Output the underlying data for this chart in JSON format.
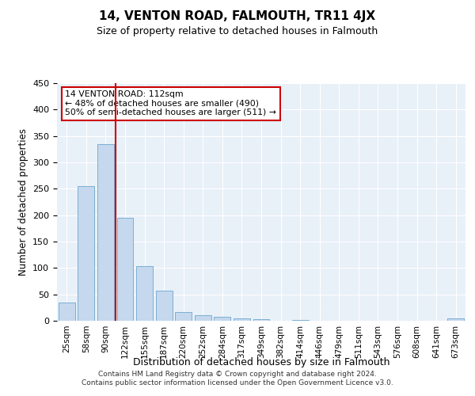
{
  "title": "14, VENTON ROAD, FALMOUTH, TR11 4JX",
  "subtitle": "Size of property relative to detached houses in Falmouth",
  "xlabel": "Distribution of detached houses by size in Falmouth",
  "ylabel": "Number of detached properties",
  "categories": [
    "25sqm",
    "58sqm",
    "90sqm",
    "122sqm",
    "155sqm",
    "187sqm",
    "220sqm",
    "252sqm",
    "284sqm",
    "317sqm",
    "349sqm",
    "382sqm",
    "414sqm",
    "446sqm",
    "479sqm",
    "511sqm",
    "543sqm",
    "576sqm",
    "608sqm",
    "641sqm",
    "673sqm"
  ],
  "values": [
    35,
    255,
    335,
    195,
    103,
    57,
    17,
    10,
    7,
    5,
    3,
    0,
    2,
    0,
    0,
    0,
    0,
    0,
    0,
    0,
    4
  ],
  "bar_color": "#c5d8ed",
  "bar_edge_color": "#7bafd4",
  "vline_color": "#cc0000",
  "vline_pos": 2.5,
  "annotation_text": "14 VENTON ROAD: 112sqm\n← 48% of detached houses are smaller (490)\n50% of semi-detached houses are larger (511) →",
  "annotation_box_color": "#ffffff",
  "annotation_box_edge": "#cc0000",
  "ylim": [
    0,
    450
  ],
  "yticks": [
    0,
    50,
    100,
    150,
    200,
    250,
    300,
    350,
    400,
    450
  ],
  "bg_color": "#e8f0f8",
  "grid_color": "#ffffff",
  "footer_line1": "Contains HM Land Registry data © Crown copyright and database right 2024.",
  "footer_line2": "Contains public sector information licensed under the Open Government Licence v3.0."
}
